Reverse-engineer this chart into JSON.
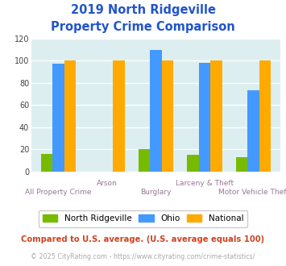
{
  "title_line1": "2019 North Ridgeville",
  "title_line2": "Property Crime Comparison",
  "categories": [
    "All Property Crime",
    "Arson",
    "Burglary",
    "Larceny & Theft",
    "Motor Vehicle Theft"
  ],
  "x_labels_top": [
    "",
    "Arson",
    "",
    "Larceny & Theft",
    ""
  ],
  "x_labels_bottom": [
    "All Property Crime",
    "",
    "Burglary",
    "",
    "Motor Vehicle Theft"
  ],
  "north_ridgeville": [
    16,
    0,
    20,
    15,
    13
  ],
  "ohio": [
    97,
    0,
    110,
    98,
    73
  ],
  "national": [
    100,
    100,
    100,
    100,
    100
  ],
  "color_nr": "#77bb00",
  "color_ohio": "#4499ff",
  "color_national": "#ffaa00",
  "ylim": [
    0,
    120
  ],
  "yticks": [
    0,
    20,
    40,
    60,
    80,
    100,
    120
  ],
  "plot_bg": "#ddeef0",
  "title_color": "#2255cc",
  "xlabel_color": "#997799",
  "legend_label_nr": "North Ridgeville",
  "legend_label_ohio": "Ohio",
  "legend_label_national": "National",
  "footnote1": "Compared to U.S. average. (U.S. average equals 100)",
  "footnote2": "© 2025 CityRating.com - https://www.cityrating.com/crime-statistics/",
  "footnote1_color": "#cc4422",
  "footnote2_color": "#aaaaaa",
  "footnote2_link_color": "#4499ff"
}
